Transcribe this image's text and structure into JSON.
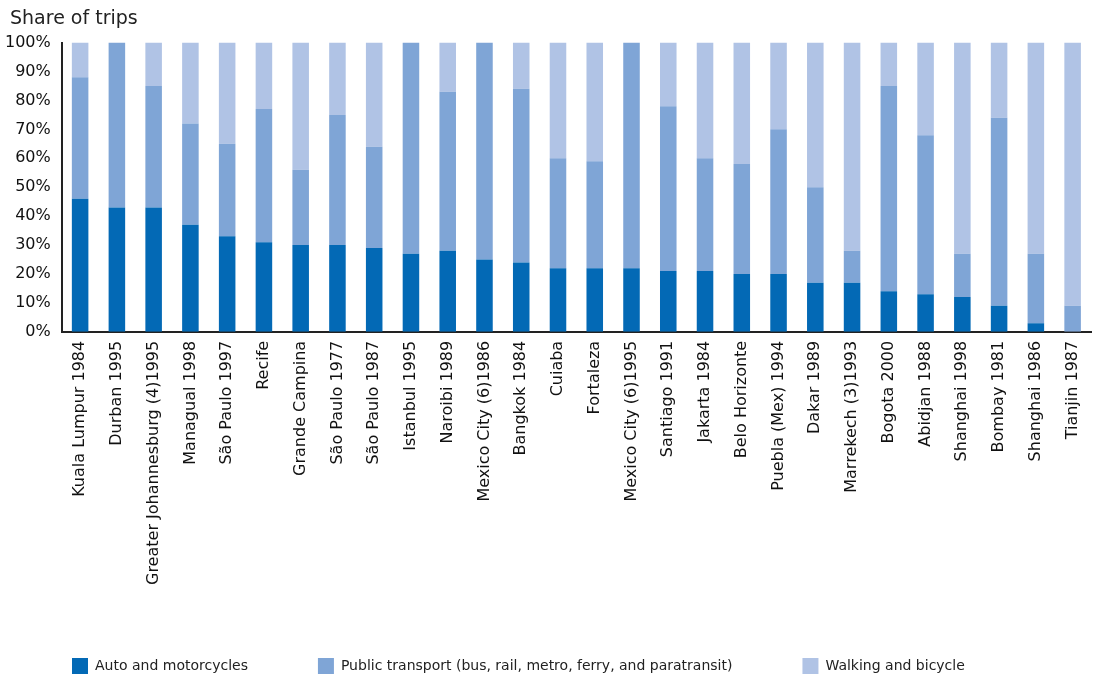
{
  "chart_data": {
    "type": "bar",
    "stacked": true,
    "ylabel": "Share of trips",
    "categories": [
      "Kuala Lumpur 1984",
      "Durban 1995",
      "Greater Johannesburg (4)1995",
      "Managual 1998",
      "São Paulo 1997",
      "Recife",
      "Grande Campina",
      "São Paulo 1977",
      "São Paulo 1987",
      "Istanbul 1995",
      "Naroibi 1989",
      "Mexico City (6)1986",
      "Bangkok 1984",
      "Cuiaba",
      "Fortaleza",
      "Mexico City (6)1995",
      "Santiago 1991",
      "Jakarta 1984",
      "Belo Horizonte",
      "Puebla (Mex) 1994",
      "Dakar 1989",
      "Marrekech (3)1993",
      "Bogota 2000",
      "Abidjan 1988",
      "Shanghai 1998",
      "Bombay 1981",
      "Shanghai 1986",
      "Tianjin 1987"
    ],
    "series": [
      {
        "name": "Auto and motorcycles",
        "color": "#0369b5",
        "values": [
          46,
          43,
          43,
          37,
          33,
          31,
          30,
          30,
          29,
          27,
          28,
          25,
          24,
          22,
          22,
          22,
          21,
          21,
          20,
          20,
          17,
          17,
          14,
          13,
          12,
          9,
          3,
          0
        ]
      },
      {
        "name": "Public transport (bus, rail, metro, ferry, and paratransit)",
        "color": "#7fa5d6",
        "values": [
          42,
          57,
          42,
          35,
          32,
          46,
          26,
          45,
          35,
          73,
          55,
          75,
          60,
          38,
          37,
          78,
          57,
          39,
          38,
          50,
          33,
          11,
          71,
          55,
          15,
          65,
          24,
          9
        ]
      },
      {
        "name": "Walking and bicycle",
        "color": "#b0c3e5",
        "values": [
          12,
          0,
          15,
          28,
          35,
          23,
          44,
          25,
          36,
          0,
          17,
          0,
          16,
          40,
          41,
          0,
          22,
          40,
          42,
          30,
          50,
          72,
          15,
          32,
          73,
          26,
          73,
          91
        ]
      }
    ],
    "ylim": [
      0,
      100
    ],
    "yticks": [
      {
        "value": 0,
        "label": "0%"
      },
      {
        "value": 10,
        "label": "10%"
      },
      {
        "value": 20,
        "label": "20%"
      },
      {
        "value": 30,
        "label": "30%"
      },
      {
        "value": 40,
        "label": "40%"
      },
      {
        "value": 50,
        "label": "50%"
      },
      {
        "value": 60,
        "label": "60%"
      },
      {
        "value": 70,
        "label": "70%"
      },
      {
        "value": 80,
        "label": "80%"
      },
      {
        "value": 90,
        "label": "90%"
      },
      {
        "value": 100,
        "label": "100%"
      }
    ],
    "grid": false,
    "legend": "bottom"
  }
}
